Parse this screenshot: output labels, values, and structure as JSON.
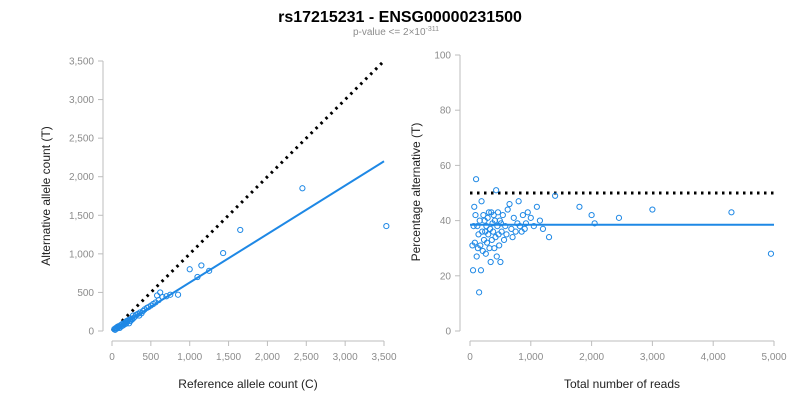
{
  "header": {
    "title": "rs17215231 - ENSG00000231500",
    "subtitle_prefix": "p-value <= 2×10",
    "subtitle_exponent": "-311"
  },
  "colors": {
    "points": "#1e88e5",
    "fit_line": "#1e88e5",
    "reference_line": "#000000",
    "axis": "#bdbdbd",
    "tick_labels": "#8c8c8c"
  },
  "chart_data": [
    {
      "type": "scatter",
      "xlabel": "Reference allele count (C)",
      "ylabel": "Alternative allele count (T)",
      "xlim": [
        0,
        3500
      ],
      "ylim": [
        0,
        3500
      ],
      "xticks": [
        0,
        500,
        1000,
        1500,
        2000,
        2500,
        3000,
        3500
      ],
      "yticks": [
        0,
        500,
        1000,
        1500,
        2000,
        2500,
        3000,
        3500
      ],
      "xtick_labels": [
        "0",
        "500",
        "1,000",
        "1,500",
        "2,000",
        "2,500",
        "3,000",
        "3,500"
      ],
      "ytick_labels": [
        "0",
        "500",
        "1,000",
        "1,500",
        "2,000",
        "2,500",
        "3,000",
        "3,500"
      ],
      "reference_line": {
        "style": "dotted",
        "from": [
          0,
          0
        ],
        "to": [
          3500,
          3500
        ]
      },
      "fit_line": {
        "style": "solid",
        "from": [
          0,
          0
        ],
        "to": [
          3500,
          2200
        ]
      },
      "points": [
        [
          30,
          25
        ],
        [
          40,
          15
        ],
        [
          50,
          40
        ],
        [
          60,
          30
        ],
        [
          70,
          55
        ],
        [
          80,
          45
        ],
        [
          90,
          60
        ],
        [
          100,
          40
        ],
        [
          110,
          75
        ],
        [
          120,
          60
        ],
        [
          130,
          90
        ],
        [
          140,
          70
        ],
        [
          150,
          100
        ],
        [
          160,
          85
        ],
        [
          170,
          110
        ],
        [
          180,
          95
        ],
        [
          190,
          130
        ],
        [
          200,
          120
        ],
        [
          210,
          140
        ],
        [
          220,
          100
        ],
        [
          230,
          150
        ],
        [
          240,
          130
        ],
        [
          250,
          160
        ],
        [
          260,
          150
        ],
        [
          270,
          200
        ],
        [
          280,
          170
        ],
        [
          300,
          190
        ],
        [
          310,
          210
        ],
        [
          330,
          220
        ],
        [
          350,
          200
        ],
        [
          360,
          240
        ],
        [
          380,
          230
        ],
        [
          400,
          260
        ],
        [
          420,
          280
        ],
        [
          450,
          300
        ],
        [
          470,
          310
        ],
        [
          500,
          330
        ],
        [
          530,
          350
        ],
        [
          560,
          370
        ],
        [
          580,
          460
        ],
        [
          600,
          400
        ],
        [
          620,
          500
        ],
        [
          650,
          440
        ],
        [
          700,
          450
        ],
        [
          750,
          470
        ],
        [
          850,
          470
        ],
        [
          1000,
          800
        ],
        [
          1100,
          700
        ],
        [
          1150,
          850
        ],
        [
          1250,
          780
        ],
        [
          1430,
          1010
        ],
        [
          1650,
          1310
        ],
        [
          2450,
          1850
        ],
        [
          3530,
          1360
        ]
      ]
    },
    {
      "type": "scatter",
      "xlabel": "Total number of reads",
      "ylabel": "Percentage alternative (T)",
      "xlim": [
        0,
        5000
      ],
      "ylim": [
        0,
        100
      ],
      "xticks": [
        0,
        1000,
        2000,
        3000,
        4000,
        5000
      ],
      "yticks": [
        0,
        20,
        40,
        60,
        80,
        100
      ],
      "xtick_labels": [
        "0",
        "1,000",
        "2,000",
        "3,000",
        "4,000",
        "5,000"
      ],
      "ytick_labels": [
        "0",
        "20",
        "40",
        "60",
        "80",
        "100"
      ],
      "reference_line": {
        "style": "dotted",
        "y": 50,
        "from_x": 0,
        "to_x": 5000
      },
      "fit_line": {
        "style": "solid",
        "y": 38.5,
        "from_x": 0,
        "to_x": 5000
      },
      "points": [
        [
          40,
          31
        ],
        [
          50,
          22
        ],
        [
          60,
          38
        ],
        [
          70,
          45
        ],
        [
          80,
          32
        ],
        [
          90,
          42
        ],
        [
          100,
          55
        ],
        [
          110,
          27
        ],
        [
          120,
          38
        ],
        [
          130,
          30
        ],
        [
          140,
          35
        ],
        [
          150,
          14
        ],
        [
          160,
          40
        ],
        [
          170,
          31
        ],
        [
          180,
          22
        ],
        [
          190,
          47
        ],
        [
          200,
          36
        ],
        [
          210,
          29
        ],
        [
          220,
          42
        ],
        [
          230,
          33
        ],
        [
          240,
          40
        ],
        [
          250,
          36
        ],
        [
          260,
          28
        ],
        [
          270,
          38
        ],
        [
          280,
          32
        ],
        [
          290,
          41
        ],
        [
          300,
          35
        ],
        [
          310,
          43
        ],
        [
          320,
          30
        ],
        [
          330,
          37
        ],
        [
          340,
          25
        ],
        [
          350,
          43
        ],
        [
          360,
          33
        ],
        [
          370,
          39
        ],
        [
          380,
          36
        ],
        [
          390,
          42
        ],
        [
          400,
          30
        ],
        [
          410,
          40
        ],
        [
          420,
          34
        ],
        [
          430,
          51
        ],
        [
          440,
          27
        ],
        [
          450,
          38
        ],
        [
          460,
          43
        ],
        [
          470,
          35
        ],
        [
          480,
          31
        ],
        [
          490,
          40
        ],
        [
          500,
          25
        ],
        [
          510,
          39
        ],
        [
          520,
          36
        ],
        [
          540,
          42
        ],
        [
          560,
          33
        ],
        [
          580,
          38
        ],
        [
          600,
          35
        ],
        [
          620,
          44
        ],
        [
          650,
          46
        ],
        [
          680,
          37
        ],
        [
          700,
          34
        ],
        [
          720,
          41
        ],
        [
          750,
          36
        ],
        [
          780,
          39
        ],
        [
          800,
          47
        ],
        [
          820,
          38
        ],
        [
          850,
          36
        ],
        [
          870,
          42
        ],
        [
          900,
          37
        ],
        [
          920,
          39
        ],
        [
          950,
          43
        ],
        [
          1000,
          41
        ],
        [
          1050,
          38
        ],
        [
          1100,
          45
        ],
        [
          1150,
          40
        ],
        [
          1200,
          37
        ],
        [
          1300,
          34
        ],
        [
          1400,
          49
        ],
        [
          1800,
          45
        ],
        [
          2000,
          42
        ],
        [
          2050,
          39
        ],
        [
          2450,
          41
        ],
        [
          3000,
          44
        ],
        [
          4300,
          43
        ],
        [
          4950,
          28
        ]
      ]
    }
  ]
}
